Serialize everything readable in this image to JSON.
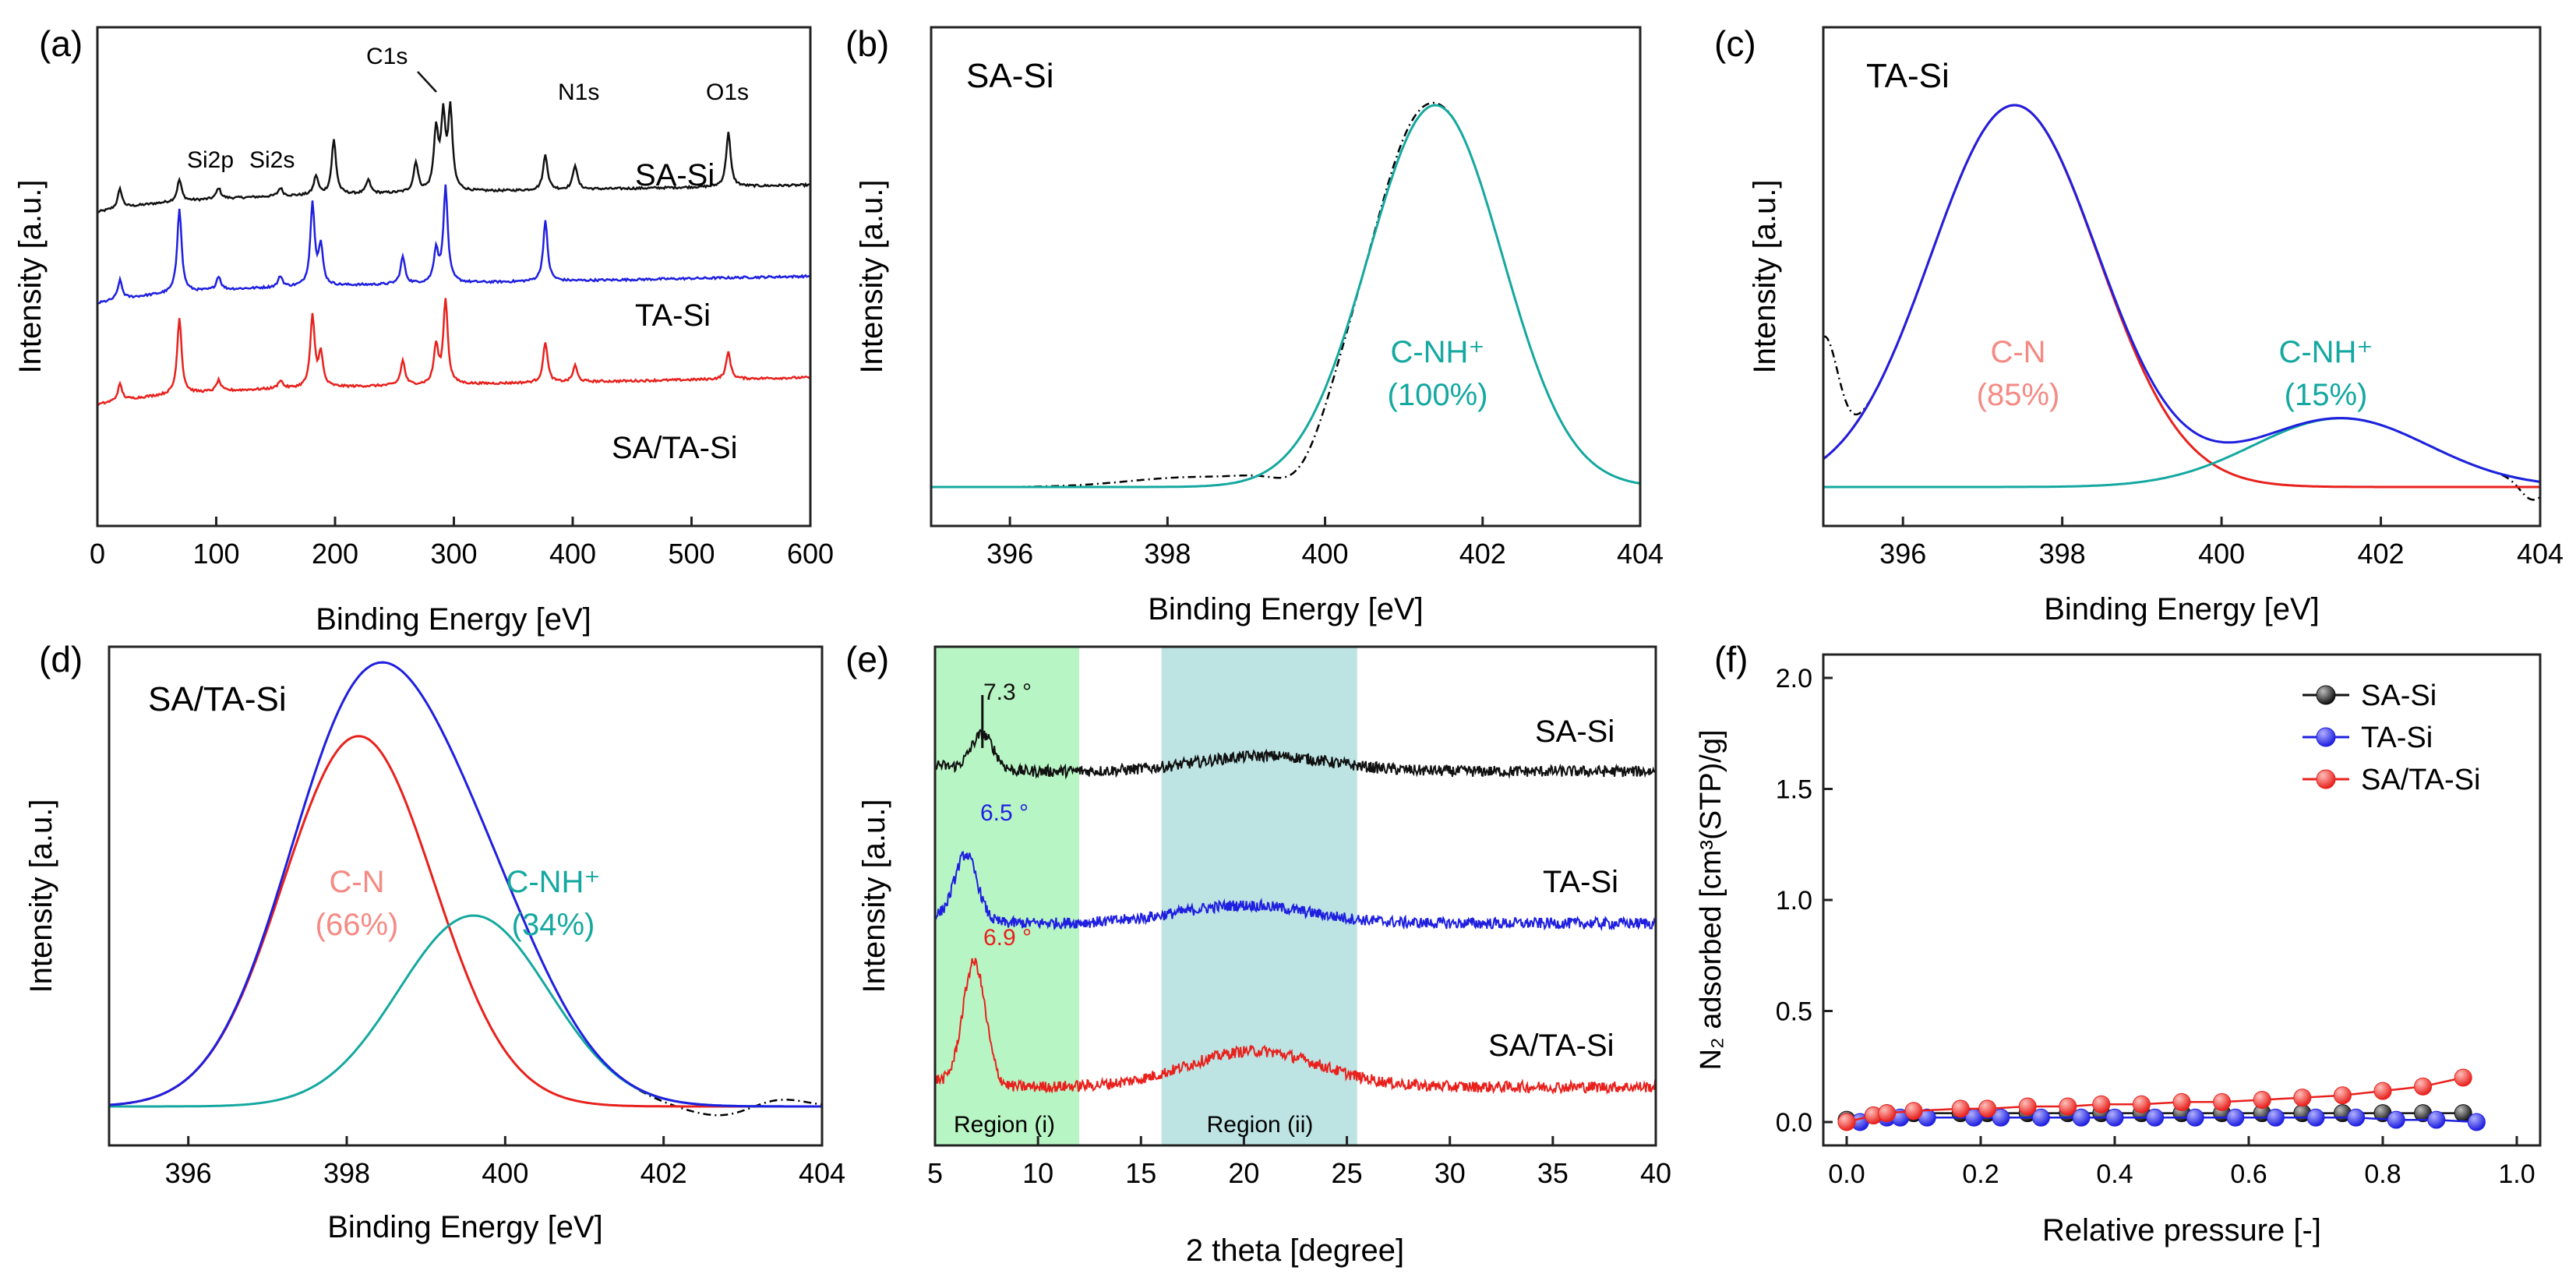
{
  "figure": {
    "description_labels": [
      "(a)",
      "(b)",
      "(c)",
      "(d)",
      "(e)",
      "(f)"
    ]
  },
  "colors": {
    "black": "#111111",
    "blue": "#1f1fe0",
    "red": "#e8211d",
    "teal": "#14a8a0",
    "pink": "#f58a84",
    "region_i": "#b8f5c4",
    "region_ii": "#bde3e3",
    "fit_dash": "#000000"
  },
  "chart_data": [
    {
      "panel": "(a)",
      "type": "line",
      "xlabel": "Binding Energy [eV]",
      "ylabel": "Intensity [a.u.]",
      "xlim": [
        0,
        600
      ],
      "xticks": [
        0,
        100,
        200,
        300,
        400,
        500,
        600
      ],
      "annotations": [
        "Si2p",
        "Si2s",
        "C1s",
        "N1s",
        "O1s"
      ],
      "series": [
        {
          "name": "SA-Si",
          "color": "#111111",
          "peaks": [
            [
              19,
              0.35
            ],
            [
              69,
              0.4
            ],
            [
              102,
              0.2
            ],
            [
              154,
              0.15
            ],
            [
              184,
              0.35
            ],
            [
              199,
              1.0
            ],
            [
              228,
              0.25
            ],
            [
              268,
              0.55
            ],
            [
              285,
              1.1
            ],
            [
              291,
              1.3
            ],
            [
              297,
              1.45
            ],
            [
              377,
              0.65
            ],
            [
              402,
              0.45
            ],
            [
              531,
              1.0
            ]
          ]
        },
        {
          "name": "TA-Si",
          "color": "#1f1fe0",
          "peaks": [
            [
              19,
              0.35
            ],
            [
              69,
              1.55
            ],
            [
              102,
              0.25
            ],
            [
              154,
              0.2
            ],
            [
              181,
              1.5
            ],
            [
              188,
              0.7
            ],
            [
              257,
              0.5
            ],
            [
              285,
              0.6
            ],
            [
              293,
              1.75
            ],
            [
              377,
              1.1
            ]
          ]
        },
        {
          "name": "SA/TA-Si",
          "color": "#e8211d",
          "peaks": [
            [
              19,
              0.3
            ],
            [
              69,
              1.4
            ],
            [
              102,
              0.2
            ],
            [
              154,
              0.15
            ],
            [
              181,
              1.3
            ],
            [
              188,
              0.6
            ],
            [
              257,
              0.45
            ],
            [
              285,
              0.7
            ],
            [
              293,
              1.55
            ],
            [
              377,
              0.75
            ],
            [
              402,
              0.3
            ],
            [
              531,
              0.5
            ]
          ]
        }
      ]
    },
    {
      "panel": "(b)",
      "type": "line",
      "title": "SA-Si",
      "xlabel": "Binding Energy [eV]",
      "ylabel": "Intensity [a.u.]",
      "xlim": [
        395,
        404
      ],
      "xticks": [
        396,
        398,
        400,
        402,
        404
      ],
      "components": [
        {
          "label": "C-NH⁺",
          "percent": "(100%)",
          "center": 401.4,
          "sigma": 0.85,
          "amplitude": 1.0,
          "color": "#14a8a0"
        }
      ]
    },
    {
      "panel": "(c)",
      "type": "line",
      "title": "TA-Si",
      "xlabel": "Binding Energy [eV]",
      "ylabel": "Intensity [a.u.]",
      "xlim": [
        395,
        404
      ],
      "xticks": [
        396,
        398,
        400,
        402,
        404
      ],
      "components": [
        {
          "label": "C-N",
          "percent": "(85%)",
          "center": 397.4,
          "sigma": 1.05,
          "amplitude": 1.0,
          "color": "#e8211d"
        },
        {
          "label": "C-NH⁺",
          "percent": "(15%)",
          "center": 401.5,
          "sigma": 1.1,
          "amplitude": 0.18,
          "color": "#14a8a0"
        }
      ],
      "envelope_color": "#1f1fe0"
    },
    {
      "panel": "(d)",
      "type": "line",
      "title": "SA/TA-Si",
      "xlabel": "Binding Energy [eV]",
      "ylabel": "Intensity [a.u.]",
      "xlim": [
        395,
        404
      ],
      "xticks": [
        396,
        398,
        400,
        402,
        404
      ],
      "components": [
        {
          "label": "C-N",
          "percent": "(66%)",
          "center": 398.15,
          "sigma": 0.95,
          "amplitude": 0.97,
          "color": "#e8211d"
        },
        {
          "label": "C-NH⁺",
          "percent": "(34%)",
          "center": 399.6,
          "sigma": 0.95,
          "amplitude": 0.5,
          "color": "#14a8a0"
        }
      ],
      "envelope_color": "#1f1fe0"
    },
    {
      "panel": "(e)",
      "type": "line",
      "xlabel": "2 theta [degree]",
      "ylabel": "Intensity [a.u.]",
      "xlim": [
        5,
        40
      ],
      "xticks": [
        5,
        10,
        15,
        20,
        25,
        30,
        35,
        40
      ],
      "regions": [
        {
          "label": "Region (i)",
          "range": [
            5,
            12
          ],
          "color": "#b8f5c4"
        },
        {
          "label": "Region (ii)",
          "range": [
            16,
            25.5
          ],
          "color": "#bde3e3"
        }
      ],
      "series": [
        {
          "name": "SA-Si",
          "color": "#111111",
          "peak_label": "7.3 °",
          "peak": [
            7.3,
            0.7
          ],
          "hump": [
            21,
            0.3
          ]
        },
        {
          "name": "TA-Si",
          "color": "#1f1fe0",
          "peak_label": "6.5 °",
          "peak": [
            6.5,
            1.3
          ],
          "hump": [
            20,
            0.35
          ]
        },
        {
          "name": "SA/TA-Si",
          "color": "#e8211d",
          "peak_label": "6.9 °",
          "peak": [
            6.9,
            2.4
          ],
          "hump": [
            20.5,
            0.7
          ]
        }
      ]
    },
    {
      "panel": "(f)",
      "type": "scatter",
      "xlabel": "Relative pressure [-]",
      "ylabel": "N₂ adsorbed [cm³(STP)/g]",
      "xlim": [
        0,
        1.0
      ],
      "ylim": [
        0,
        2.0
      ],
      "xticks": [
        "0.0",
        "0.2",
        "0.4",
        "0.6",
        "0.8",
        "1.0"
      ],
      "yticks": [
        "0.0",
        "0.5",
        "1.0",
        "1.5",
        "2.0"
      ],
      "x": [
        0.0,
        0.04,
        0.06,
        0.1,
        0.17,
        0.21,
        0.27,
        0.33,
        0.38,
        0.44,
        0.5,
        0.56,
        0.62,
        0.68,
        0.74,
        0.8,
        0.86,
        0.92
      ],
      "series": [
        {
          "name": "SA-Si",
          "color": "#111111",
          "y": [
            0.01,
            0.03,
            0.04,
            0.04,
            0.04,
            0.04,
            0.04,
            0.04,
            0.04,
            0.04,
            0.04,
            0.04,
            0.04,
            0.04,
            0.04,
            0.04,
            0.04,
            0.04
          ]
        },
        {
          "name": "TA-Si",
          "color": "#1f1fe0",
          "y": [
            0.0,
            0.02,
            0.02,
            0.02,
            0.02,
            0.02,
            0.02,
            0.02,
            0.02,
            0.02,
            0.02,
            0.02,
            0.02,
            0.02,
            0.02,
            0.01,
            0.01,
            0.0
          ]
        },
        {
          "name": "SA/TA-Si",
          "color": "#e8211d",
          "y": [
            0.0,
            0.03,
            0.04,
            0.05,
            0.06,
            0.06,
            0.07,
            0.07,
            0.08,
            0.08,
            0.09,
            0.09,
            0.1,
            0.11,
            0.12,
            0.14,
            0.16,
            0.2
          ]
        }
      ]
    }
  ]
}
